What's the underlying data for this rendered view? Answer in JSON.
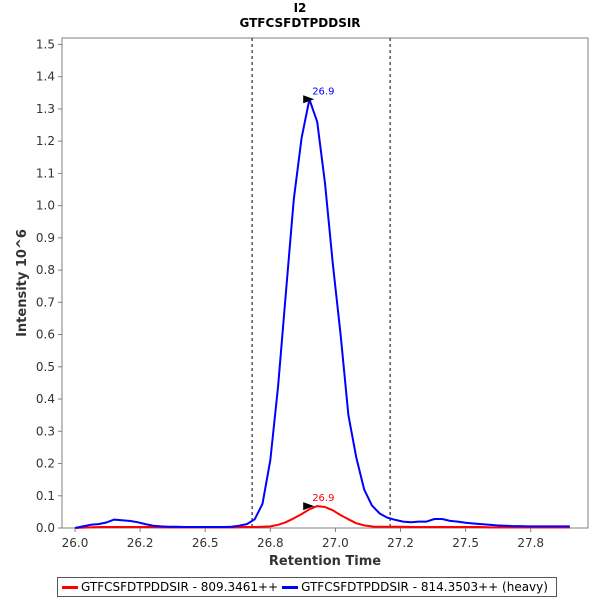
{
  "chart_data": {
    "type": "line",
    "title": "I2",
    "subtitle": "GTFCSFDTPDDSIR",
    "xlabel": "Retention Time",
    "ylabel": "Intensity 10^6",
    "xlim": [
      25.95,
      27.97
    ],
    "ylim": [
      0,
      1.52
    ],
    "xticks": [
      "26.0",
      "26.2",
      "26.5",
      "26.8",
      "27.0",
      "27.2",
      "27.5",
      "27.8"
    ],
    "xtick_values": [
      26.0,
      26.25,
      26.5,
      26.75,
      27.0,
      27.25,
      27.5,
      27.75
    ],
    "yticks": [
      "0.0",
      "0.1",
      "0.2",
      "0.3",
      "0.4",
      "0.5",
      "0.6",
      "0.7",
      "0.8",
      "0.9",
      "1.0",
      "1.1",
      "1.2",
      "1.3",
      "1.4",
      "1.5"
    ],
    "ytick_values": [
      0.0,
      0.1,
      0.2,
      0.3,
      0.4,
      0.5,
      0.6,
      0.7,
      0.8,
      0.9,
      1.0,
      1.1,
      1.2,
      1.3,
      1.4,
      1.5
    ],
    "boundaries": [
      26.68,
      27.21
    ],
    "grid": false,
    "legend_position": "bottom",
    "series": [
      {
        "name": "GTFCSFDTPDDSIR - 809.3461++",
        "color": "#ff0000",
        "peak_label": "26.9",
        "peak": [
          26.93,
          0.068
        ],
        "x": [
          26.0,
          26.05,
          26.1,
          26.15,
          26.2,
          26.25,
          26.3,
          26.35,
          26.4,
          26.45,
          26.5,
          26.55,
          26.6,
          26.65,
          26.7,
          26.75,
          26.78,
          26.81,
          26.84,
          26.87,
          26.9,
          26.93,
          26.96,
          26.99,
          27.02,
          27.05,
          27.08,
          27.11,
          27.15,
          27.2,
          27.25,
          27.3,
          27.35,
          27.4,
          27.45,
          27.5,
          27.55,
          27.6,
          27.65,
          27.7,
          27.75,
          27.8,
          27.85,
          27.9
        ],
        "y": [
          0.0,
          0.002,
          0.003,
          0.003,
          0.003,
          0.003,
          0.003,
          0.002,
          0.002,
          0.002,
          0.002,
          0.002,
          0.002,
          0.003,
          0.003,
          0.005,
          0.01,
          0.018,
          0.03,
          0.043,
          0.058,
          0.068,
          0.065,
          0.055,
          0.04,
          0.027,
          0.015,
          0.008,
          0.004,
          0.004,
          0.004,
          0.003,
          0.003,
          0.003,
          0.003,
          0.003,
          0.003,
          0.002,
          0.002,
          0.002,
          0.002,
          0.002,
          0.002,
          0.002
        ]
      },
      {
        "name": "GTFCSFDTPDDSIR - 814.3503++ (heavy)",
        "color": "#0000ff",
        "peak_label": "26.9",
        "peak": [
          26.93,
          1.33
        ],
        "x": [
          26.0,
          26.03,
          26.06,
          26.09,
          26.12,
          26.15,
          26.18,
          26.21,
          26.24,
          26.27,
          26.3,
          26.33,
          26.36,
          26.39,
          26.42,
          26.45,
          26.48,
          26.51,
          26.54,
          26.57,
          26.6,
          26.63,
          26.66,
          26.69,
          26.72,
          26.75,
          26.78,
          26.81,
          26.84,
          26.87,
          26.9,
          26.93,
          26.96,
          26.99,
          27.02,
          27.05,
          27.08,
          27.11,
          27.14,
          27.17,
          27.2,
          27.23,
          27.26,
          27.29,
          27.32,
          27.35,
          27.38,
          27.41,
          27.44,
          27.47,
          27.5,
          27.53,
          27.56,
          27.59,
          27.62,
          27.65,
          27.68,
          27.71,
          27.74,
          27.77,
          27.8,
          27.83,
          27.86,
          27.9
        ],
        "y": [
          0.0,
          0.005,
          0.01,
          0.012,
          0.017,
          0.026,
          0.024,
          0.022,
          0.018,
          0.012,
          0.007,
          0.005,
          0.004,
          0.004,
          0.003,
          0.003,
          0.003,
          0.003,
          0.003,
          0.003,
          0.004,
          0.007,
          0.012,
          0.027,
          0.075,
          0.21,
          0.44,
          0.73,
          1.02,
          1.21,
          1.33,
          1.26,
          1.07,
          0.82,
          0.6,
          0.35,
          0.22,
          0.12,
          0.07,
          0.045,
          0.032,
          0.025,
          0.02,
          0.018,
          0.02,
          0.02,
          0.028,
          0.028,
          0.022,
          0.02,
          0.016,
          0.014,
          0.012,
          0.01,
          0.008,
          0.007,
          0.006,
          0.006,
          0.005,
          0.005,
          0.005,
          0.005,
          0.005,
          0.005
        ]
      }
    ]
  }
}
